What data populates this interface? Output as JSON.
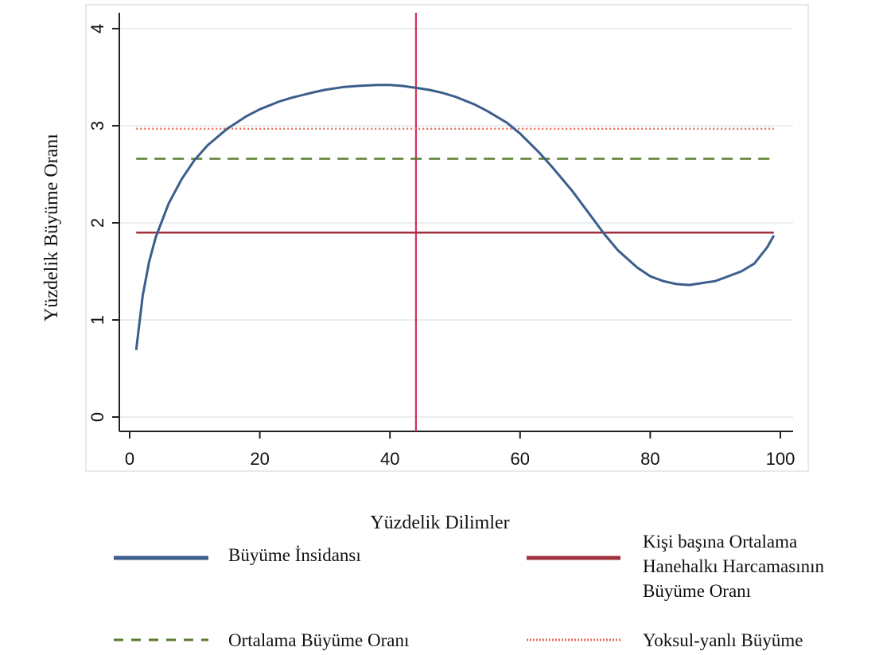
{
  "chart_data": {
    "type": "line",
    "xlabel": "Yüzdelik Dilimler",
    "ylabel": "Yüzdelik Büyüme Oranı",
    "xlim": [
      0,
      100
    ],
    "ylim": [
      0,
      4
    ],
    "x_ticks": [
      0,
      20,
      40,
      60,
      80,
      100
    ],
    "y_ticks": [
      0,
      1,
      2,
      3,
      4
    ],
    "grid": "horizontal",
    "legend_position": "bottom",
    "series": [
      {
        "name": "Büyüme İnsidansı",
        "color": "#3b5e8c",
        "style": "solid",
        "x": [
          1,
          2,
          3,
          4,
          6,
          8,
          10,
          12,
          15,
          18,
          20,
          23,
          25,
          28,
          30,
          33,
          35,
          38,
          40,
          42,
          44,
          46,
          48,
          50,
          53,
          55,
          58,
          60,
          63,
          65,
          68,
          70,
          73,
          75,
          78,
          80,
          82,
          84,
          86,
          88,
          90,
          92,
          94,
          96,
          98,
          99
        ],
        "y": [
          0.69,
          1.25,
          1.6,
          1.85,
          2.2,
          2.45,
          2.65,
          2.8,
          2.97,
          3.1,
          3.17,
          3.25,
          3.29,
          3.34,
          3.37,
          3.4,
          3.41,
          3.42,
          3.42,
          3.41,
          3.39,
          3.37,
          3.34,
          3.3,
          3.22,
          3.15,
          3.03,
          2.92,
          2.72,
          2.57,
          2.33,
          2.15,
          1.88,
          1.72,
          1.54,
          1.45,
          1.4,
          1.37,
          1.36,
          1.38,
          1.4,
          1.45,
          1.5,
          1.58,
          1.75,
          1.87
        ]
      },
      {
        "name": "Kişi başına Ortalama Hanehalkı Harcamasının Büyüme Oranı",
        "color": "#a0303c",
        "style": "solid",
        "x": [
          1,
          99
        ],
        "y": [
          1.9,
          1.9
        ]
      },
      {
        "name": "Ortalama Büyüme Oranı",
        "color": "#5a7a2c",
        "style": "dashed",
        "x": [
          1,
          99
        ],
        "y": [
          2.66,
          2.66
        ]
      },
      {
        "name": "Yoksul-yanlı Büyüme",
        "color": "#e8705a",
        "style": "dotted",
        "x": [
          1,
          99
        ],
        "y": [
          2.97,
          2.97
        ]
      }
    ],
    "vertical_line": {
      "x": 44,
      "color": "#d4305a"
    },
    "legend": [
      {
        "lines": [
          "Büyüme İnsidansı"
        ],
        "color": "#3b5e8c",
        "style": "solid"
      },
      {
        "lines": [
          "Kişi başına Ortalama",
          "Hanehalkı Harcamasının",
          "Büyüme Oranı"
        ],
        "color": "#a0303c",
        "style": "solid"
      },
      {
        "lines": [
          "Ortalama Büyüme Oranı"
        ],
        "color": "#5a7a2c",
        "style": "dashed"
      },
      {
        "lines": [
          "Yoksul-yanlı Büyüme"
        ],
        "color": "#e8705a",
        "style": "dotted"
      }
    ]
  }
}
